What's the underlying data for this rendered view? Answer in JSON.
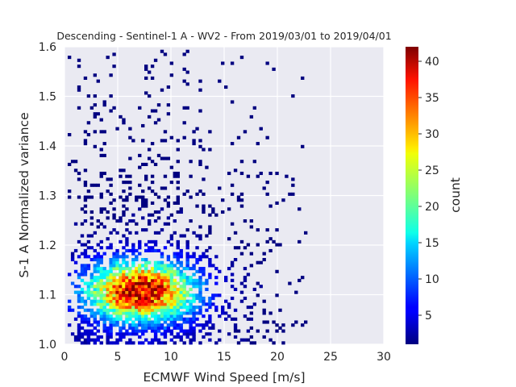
{
  "chart_data": {
    "type": "heatmap",
    "title": "Descending - Sentinel-1 A - WV2 - From 2019/03/01 to 2019/04/01",
    "xlabel": "ECMWF Wind Speed [m/s]",
    "ylabel": "S-1 A Normalized variance",
    "colorbar_label": "count",
    "xlim": [
      0,
      30
    ],
    "ylim": [
      1.0,
      1.6
    ],
    "xticks": [
      "0",
      "5",
      "10",
      "15",
      "20",
      "25",
      "30"
    ],
    "yticks": [
      "1.0",
      "1.1",
      "1.2",
      "1.3",
      "1.4",
      "1.5",
      "1.6"
    ],
    "colorbar_range": [
      1,
      42
    ],
    "colorbar_ticks": [
      "5",
      "10",
      "15",
      "20",
      "25",
      "30",
      "35",
      "40"
    ],
    "colormap": "jet",
    "grid": true,
    "background": "#eaeaf2",
    "bin_width_x": 0.3,
    "bin_width_y": 0.006,
    "density_peak": {
      "x": 7.0,
      "y": 1.105,
      "count": 42
    }
  }
}
